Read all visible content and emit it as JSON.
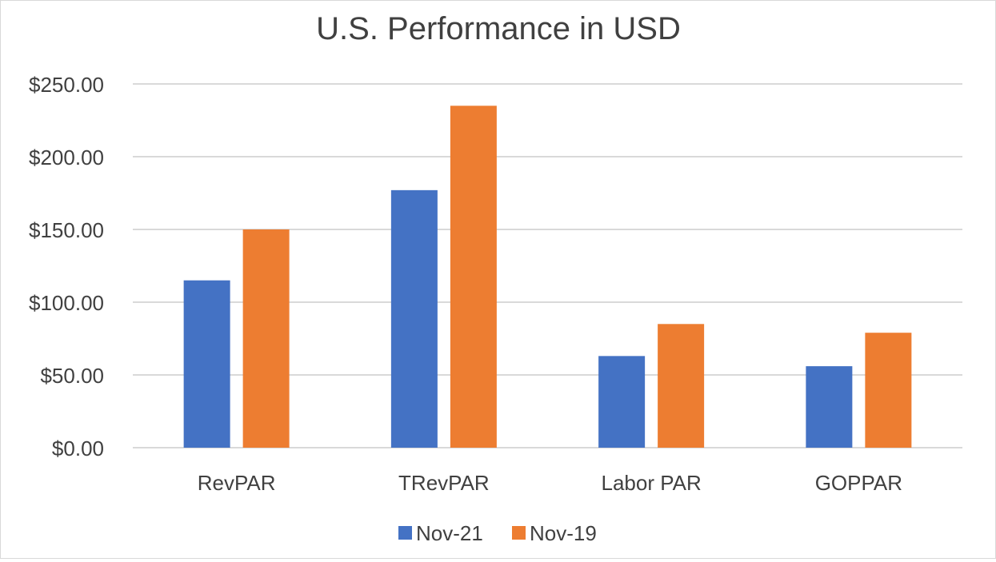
{
  "chart_data": {
    "type": "bar",
    "title": "U.S. Performance in USD",
    "xlabel": "",
    "ylabel": "",
    "categories": [
      "RevPAR",
      "TRevPAR",
      "Labor PAR",
      "GOPPAR"
    ],
    "series": [
      {
        "name": "Nov-21",
        "values": [
          115,
          177,
          63,
          56
        ],
        "color": "#4472c4"
      },
      {
        "name": "Nov-19",
        "values": [
          150,
          235,
          85,
          79
        ],
        "color": "#ed7d31"
      }
    ],
    "ylim": [
      0,
      250
    ],
    "yticks": [
      0,
      50,
      100,
      150,
      200,
      250
    ],
    "ytick_labels": [
      "$0.00",
      "$50.00",
      "$100.00",
      "$150.00",
      "$200.00",
      "$250.00"
    ],
    "grid": true,
    "legend_position": "bottom"
  },
  "colors": {
    "gridline": "#d9d9d9",
    "text": "#404040",
    "title": "#404040"
  }
}
